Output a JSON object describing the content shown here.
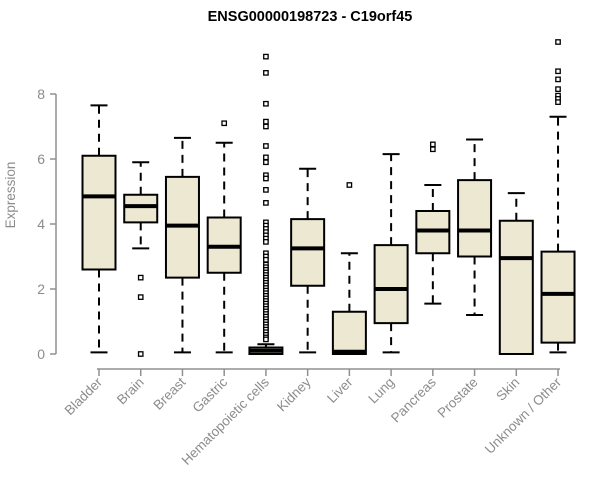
{
  "chart_data": {
    "type": "boxplot",
    "title": "ENSG00000198723 - C19orf45",
    "xlabel": "",
    "ylabel": "Expression",
    "ylim": [
      0,
      9.6
    ],
    "yticks": [
      0,
      2,
      4,
      6,
      8
    ],
    "grid": false,
    "legend": "none",
    "box_fill": "#EDE8D2",
    "box_stroke": "#000000",
    "axis_color": "#909090",
    "label_color": "#8c8c8c",
    "title_color": "#000000",
    "categories": [
      "Bladder",
      "Brain",
      "Breast",
      "Gastric",
      "Hematopoietic cells",
      "Kidney",
      "Liver",
      "Lung",
      "Pancreas",
      "Prostate",
      "Skin",
      "Unknown / Other"
    ],
    "series": [
      {
        "name": "Bladder",
        "whisker_low": 0.05,
        "q1": 2.6,
        "median": 4.85,
        "q3": 6.1,
        "whisker_high": 7.65,
        "outliers": []
      },
      {
        "name": "Brain",
        "whisker_low": 3.25,
        "q1": 4.05,
        "median": 4.55,
        "q3": 4.9,
        "whisker_high": 5.9,
        "outliers": [
          2.35,
          1.75,
          0.0
        ]
      },
      {
        "name": "Breast",
        "whisker_low": 0.05,
        "q1": 2.35,
        "median": 3.95,
        "q3": 5.45,
        "whisker_high": 6.65,
        "outliers": []
      },
      {
        "name": "Gastric",
        "whisker_low": 0.05,
        "q1": 2.5,
        "median": 3.3,
        "q3": 4.2,
        "whisker_high": 6.5,
        "outliers": [
          7.1
        ]
      },
      {
        "name": "Hematopoietic cells",
        "whisker_low": 0.0,
        "q1": 0.0,
        "median": 0.1,
        "q3": 0.2,
        "whisker_high": 0.3,
        "outliers": [
          9.15,
          8.65,
          7.7,
          7.15,
          7.0,
          6.4,
          6.05,
          5.9,
          5.5,
          5.4,
          5.05,
          4.65,
          4.05,
          3.95,
          3.85,
          3.75,
          3.65,
          3.55,
          3.45,
          3.1,
          3.0,
          2.9,
          2.75,
          2.67,
          2.59,
          2.51,
          2.43,
          2.35,
          2.27,
          2.19,
          2.11,
          2.03,
          1.95,
          1.87,
          1.79,
          1.71,
          1.63,
          1.55,
          1.47,
          1.39,
          1.31,
          1.23,
          1.15,
          1.07,
          0.99,
          0.91,
          0.83,
          0.75,
          0.67,
          0.59,
          0.51,
          0.45
        ]
      },
      {
        "name": "Kidney",
        "whisker_low": 0.05,
        "q1": 2.1,
        "median": 3.25,
        "q3": 4.15,
        "whisker_high": 5.7,
        "outliers": []
      },
      {
        "name": "Liver",
        "whisker_low": 0.0,
        "q1": 0.0,
        "median": 0.07,
        "q3": 1.3,
        "whisker_high": 3.1,
        "outliers": [
          5.2
        ]
      },
      {
        "name": "Lung",
        "whisker_low": 0.05,
        "q1": 0.95,
        "median": 2.0,
        "q3": 3.35,
        "whisker_high": 6.15,
        "outliers": []
      },
      {
        "name": "Pancreas",
        "whisker_low": 1.55,
        "q1": 3.1,
        "median": 3.8,
        "q3": 4.4,
        "whisker_high": 5.2,
        "outliers": [
          6.45,
          6.3
        ]
      },
      {
        "name": "Prostate",
        "whisker_low": 1.2,
        "q1": 3.0,
        "median": 3.8,
        "q3": 5.35,
        "whisker_high": 6.6,
        "outliers": []
      },
      {
        "name": "Skin",
        "whisker_low": 0.0,
        "q1": 0.0,
        "median": 2.95,
        "q3": 4.1,
        "whisker_high": 4.95,
        "outliers": []
      },
      {
        "name": "Unknown / Other",
        "whisker_low": 0.05,
        "q1": 0.35,
        "median": 1.85,
        "q3": 3.15,
        "whisker_high": 7.3,
        "outliers": [
          9.6,
          8.7,
          8.45,
          8.15,
          7.95,
          7.85,
          7.75
        ]
      }
    ]
  }
}
